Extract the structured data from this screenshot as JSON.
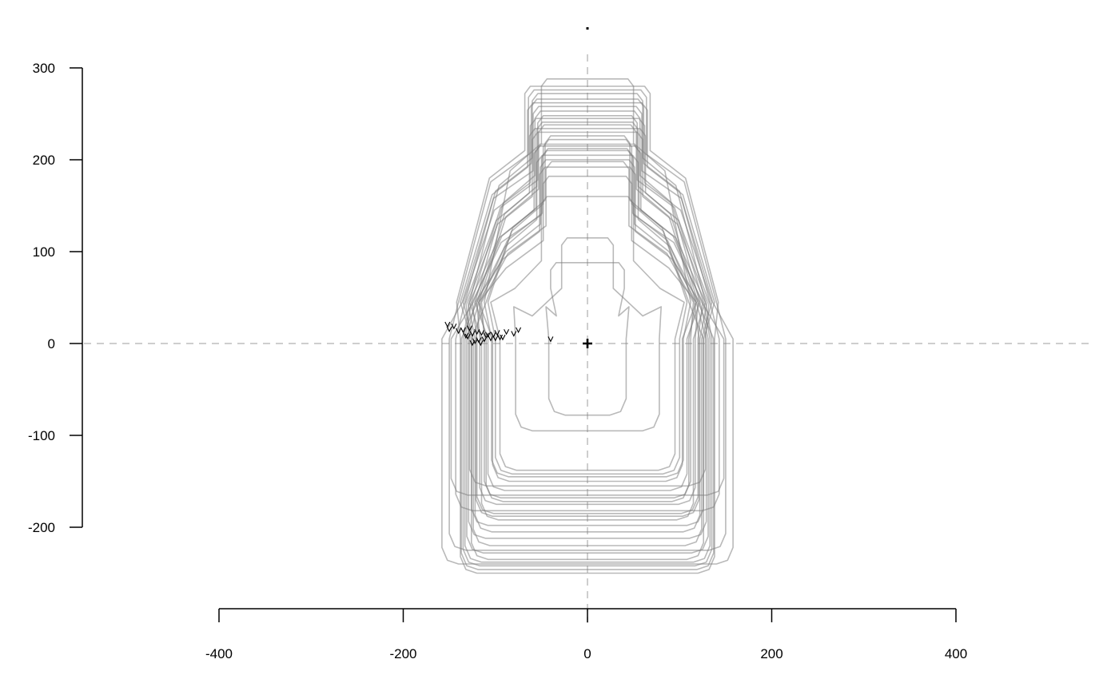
{
  "chart_data": {
    "type": "line",
    "title": "",
    "xlabel": "",
    "ylabel": "",
    "xlim": [
      -400,
      400
    ],
    "ylim": [
      -200,
      300
    ],
    "x_ticks": [
      -400,
      -200,
      0,
      200,
      400
    ],
    "y_ticks": [
      -200,
      -100,
      0,
      100,
      200,
      300
    ],
    "x_tick_labels": [
      "-400",
      "-200",
      "0",
      "200",
      "400"
    ],
    "y_tick_labels": [
      "-200",
      "-100",
      "0",
      "100",
      "200",
      "300"
    ],
    "reference_lines": {
      "x": 0,
      "y": 0,
      "style": "dashed"
    },
    "grid": false,
    "legend": "none",
    "center_marker": {
      "x": 0,
      "y": 0,
      "symbol": "+"
    },
    "top_marker": {
      "x": 0,
      "y": 343,
      "symbol": "dot"
    },
    "series_style": {
      "color": "#7f7f7f",
      "opacity": 0.55
    },
    "shape_profiles": [
      {
        "neck_half_width": 40,
        "top": 88,
        "shoulder_half_width": 45,
        "body_half_width": 42,
        "bottom": -78,
        "start": [
          -40,
          4
        ]
      },
      {
        "neck_half_width": 28,
        "top": 115,
        "shoulder_half_width": 80,
        "body_half_width": 78,
        "bottom": -95,
        "start": [
          -95,
          6
        ]
      },
      {
        "neck_half_width": 50,
        "top": 160,
        "shoulder_half_width": 105,
        "body_half_width": 95,
        "bottom": -138,
        "start": [
          -110,
          8
        ]
      },
      {
        "neck_half_width": 48,
        "top": 182,
        "shoulder_half_width": 118,
        "body_half_width": 103,
        "bottom": -150,
        "start": [
          -125,
          10
        ]
      },
      {
        "neck_half_width": 52,
        "top": 192,
        "shoulder_half_width": 122,
        "body_half_width": 108,
        "bottom": -160,
        "start": [
          -120,
          12
        ]
      },
      {
        "neck_half_width": 45,
        "top": 198,
        "shoulder_half_width": 115,
        "body_half_width": 112,
        "bottom": -168,
        "start": [
          -130,
          7
        ]
      },
      {
        "neck_half_width": 55,
        "top": 205,
        "shoulder_half_width": 120,
        "body_half_width": 117,
        "bottom": -175,
        "start": [
          -105,
          5
        ]
      },
      {
        "neck_half_width": 50,
        "top": 210,
        "shoulder_half_width": 125,
        "body_half_width": 120,
        "bottom": -185,
        "start": [
          -118,
          3
        ]
      },
      {
        "neck_half_width": 58,
        "top": 215,
        "shoulder_half_width": 128,
        "body_half_width": 115,
        "bottom": -192,
        "start": [
          -135,
          14
        ]
      },
      {
        "neck_half_width": 48,
        "top": 222,
        "shoulder_half_width": 110,
        "body_half_width": 126,
        "bottom": -198,
        "start": [
          -115,
          11
        ]
      },
      {
        "neck_half_width": 60,
        "top": 230,
        "shoulder_half_width": 130,
        "body_half_width": 122,
        "bottom": -205,
        "start": [
          -125,
          0
        ]
      },
      {
        "neck_half_width": 53,
        "top": 238,
        "shoulder_half_width": 118,
        "body_half_width": 129,
        "bottom": -212,
        "start": [
          -102,
          9
        ]
      },
      {
        "neck_half_width": 62,
        "top": 245,
        "shoulder_half_width": 135,
        "body_half_width": 124,
        "bottom": -220,
        "start": [
          -140,
          13
        ]
      },
      {
        "neck_half_width": 57,
        "top": 253,
        "shoulder_half_width": 122,
        "body_half_width": 131,
        "bottom": -228,
        "start": [
          -92,
          6
        ]
      },
      {
        "neck_half_width": 65,
        "top": 262,
        "shoulder_half_width": 138,
        "body_half_width": 126,
        "bottom": -235,
        "start": [
          -150,
          15
        ]
      },
      {
        "neck_half_width": 60,
        "top": 272,
        "shoulder_half_width": 128,
        "body_half_width": 135,
        "bottom": -242,
        "start": [
          -88,
          12
        ]
      },
      {
        "neck_half_width": 68,
        "top": 280,
        "shoulder_half_width": 142,
        "body_half_width": 138,
        "bottom": -250,
        "start": [
          -122,
          2
        ]
      },
      {
        "neck_half_width": 50,
        "top": 288,
        "shoulder_half_width": 112,
        "body_half_width": 104,
        "bottom": -145,
        "start": [
          -108,
          9
        ]
      },
      {
        "neck_half_width": 46,
        "top": 226,
        "shoulder_half_width": 108,
        "body_half_width": 100,
        "bottom": -142,
        "start": [
          -98,
          11
        ]
      },
      {
        "neck_half_width": 54,
        "top": 248,
        "shoulder_half_width": 126,
        "body_half_width": 133,
        "bottom": -238,
        "start": [
          -145,
          18
        ]
      },
      {
        "neck_half_width": 63,
        "top": 234,
        "shoulder_half_width": 132,
        "body_half_width": 128,
        "bottom": -155,
        "start": [
          -112,
          4
        ]
      },
      {
        "neck_half_width": 56,
        "top": 217,
        "shoulder_half_width": 124,
        "body_half_width": 148,
        "bottom": -165,
        "start": [
          -152,
          20
        ]
      },
      {
        "neck_half_width": 59,
        "top": 258,
        "shoulder_half_width": 136,
        "body_half_width": 158,
        "bottom": -240,
        "start": [
          -75,
          14
        ]
      },
      {
        "neck_half_width": 51,
        "top": 200,
        "shoulder_half_width": 118,
        "body_half_width": 110,
        "bottom": -172,
        "start": [
          -128,
          16
        ]
      },
      {
        "neck_half_width": 61,
        "top": 266,
        "shoulder_half_width": 133,
        "body_half_width": 143,
        "bottom": -182,
        "start": [
          -80,
          10
        ]
      },
      {
        "neck_half_width": 55,
        "top": 241,
        "shoulder_half_width": 120,
        "body_half_width": 137,
        "bottom": -246,
        "start": [
          -132,
          8
        ]
      },
      {
        "neck_half_width": 49,
        "top": 212,
        "shoulder_half_width": 116,
        "body_half_width": 121,
        "bottom": -188,
        "start": [
          -116,
          0
        ]
      },
      {
        "neck_half_width": 64,
        "top": 276,
        "shoulder_half_width": 140,
        "body_half_width": 150,
        "bottom": -225,
        "start": [
          -100,
          5
        ]
      }
    ]
  }
}
